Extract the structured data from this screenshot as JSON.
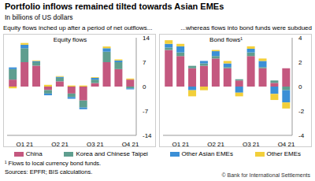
{
  "title": "Portfolio inflows remained tilted towards Asian EMEs",
  "subtitle": "In billions of US dollars",
  "footnote": "¹ Flows to local currency bond funds.",
  "sources": "Sources: EPFR; BIS calculations.",
  "copyright": "© Bank for International Settlements",
  "chart_data": [
    {
      "type": "bar",
      "title": "Equity flows inched up after a period of net outflows...",
      "subtitle": "Equity flows",
      "stacked": true,
      "grid": false,
      "categories": [
        null,
        "Q1 21",
        null,
        null,
        "Q2 21",
        null,
        null,
        "Q3 21",
        null,
        null,
        "Q4 21"
      ],
      "ylim": [
        -14,
        14
      ],
      "yticks": [
        -14,
        -7,
        0,
        7,
        14
      ],
      "series": [
        {
          "name": "China",
          "color": "#c4587f",
          "values": [
            2,
            7,
            6,
            -1,
            1.5,
            -2,
            -4,
            1,
            7,
            5,
            2
          ]
        },
        {
          "name": "Korea and Chinese Taipei",
          "color": "#5f9e8f",
          "values": [
            3,
            4,
            1,
            -1,
            1,
            -1,
            -2,
            1,
            3,
            2,
            -0.5
          ]
        },
        {
          "name": "Other Asian EMEs",
          "color": "#3b8fd6",
          "values": [
            0.5,
            1,
            0.3,
            -0.5,
            0.3,
            -0.5,
            -0.5,
            0.5,
            1,
            0.5,
            -0.3
          ]
        },
        {
          "name": "Other EMEs",
          "color": "#f2cf3a",
          "values": [
            -0.5,
            0.5,
            0.2,
            0.5,
            0.2,
            0.3,
            0.3,
            0.2,
            0.5,
            0.3,
            0.3
          ]
        }
      ]
    },
    {
      "type": "bar",
      "title": "...whereas flows into bond funds were subdued",
      "subtitle": "Bond flows¹",
      "stacked": true,
      "grid": false,
      "categories": [
        null,
        "Q1 21",
        null,
        null,
        "Q2 21",
        null,
        null,
        "Q3 21",
        null,
        null,
        "Q4 21"
      ],
      "ylim": [
        -4,
        4
      ],
      "yticks": [
        -4,
        -2,
        0,
        2,
        4
      ],
      "series": [
        {
          "name": "China",
          "color": "#c4587f",
          "values": [
            3,
            2.5,
            1.5,
            1.7,
            2.3,
            1.5,
            0.5,
            2.5,
            1.5,
            0.3,
            1.5
          ]
        },
        {
          "name": "Korea and Chinese Taipei",
          "color": "#5f9e8f",
          "values": [
            0.2,
            0.3,
            0.2,
            0.2,
            0.2,
            0.1,
            0.1,
            0.3,
            0.1,
            0.2,
            -0.3
          ]
        },
        {
          "name": "Other Asian EMEs",
          "color": "#3b8fd6",
          "values": [
            0.3,
            0.5,
            -0.3,
            0.2,
            0.4,
            0.3,
            -0.5,
            0.3,
            0.5,
            -0.6,
            -1
          ]
        },
        {
          "name": "Other EMEs",
          "color": "#f2cf3a",
          "values": [
            0.3,
            0.2,
            -0.5,
            -0.3,
            0.1,
            0.2,
            -0.3,
            0.2,
            0.2,
            -0.5,
            -0.5
          ]
        }
      ]
    }
  ]
}
